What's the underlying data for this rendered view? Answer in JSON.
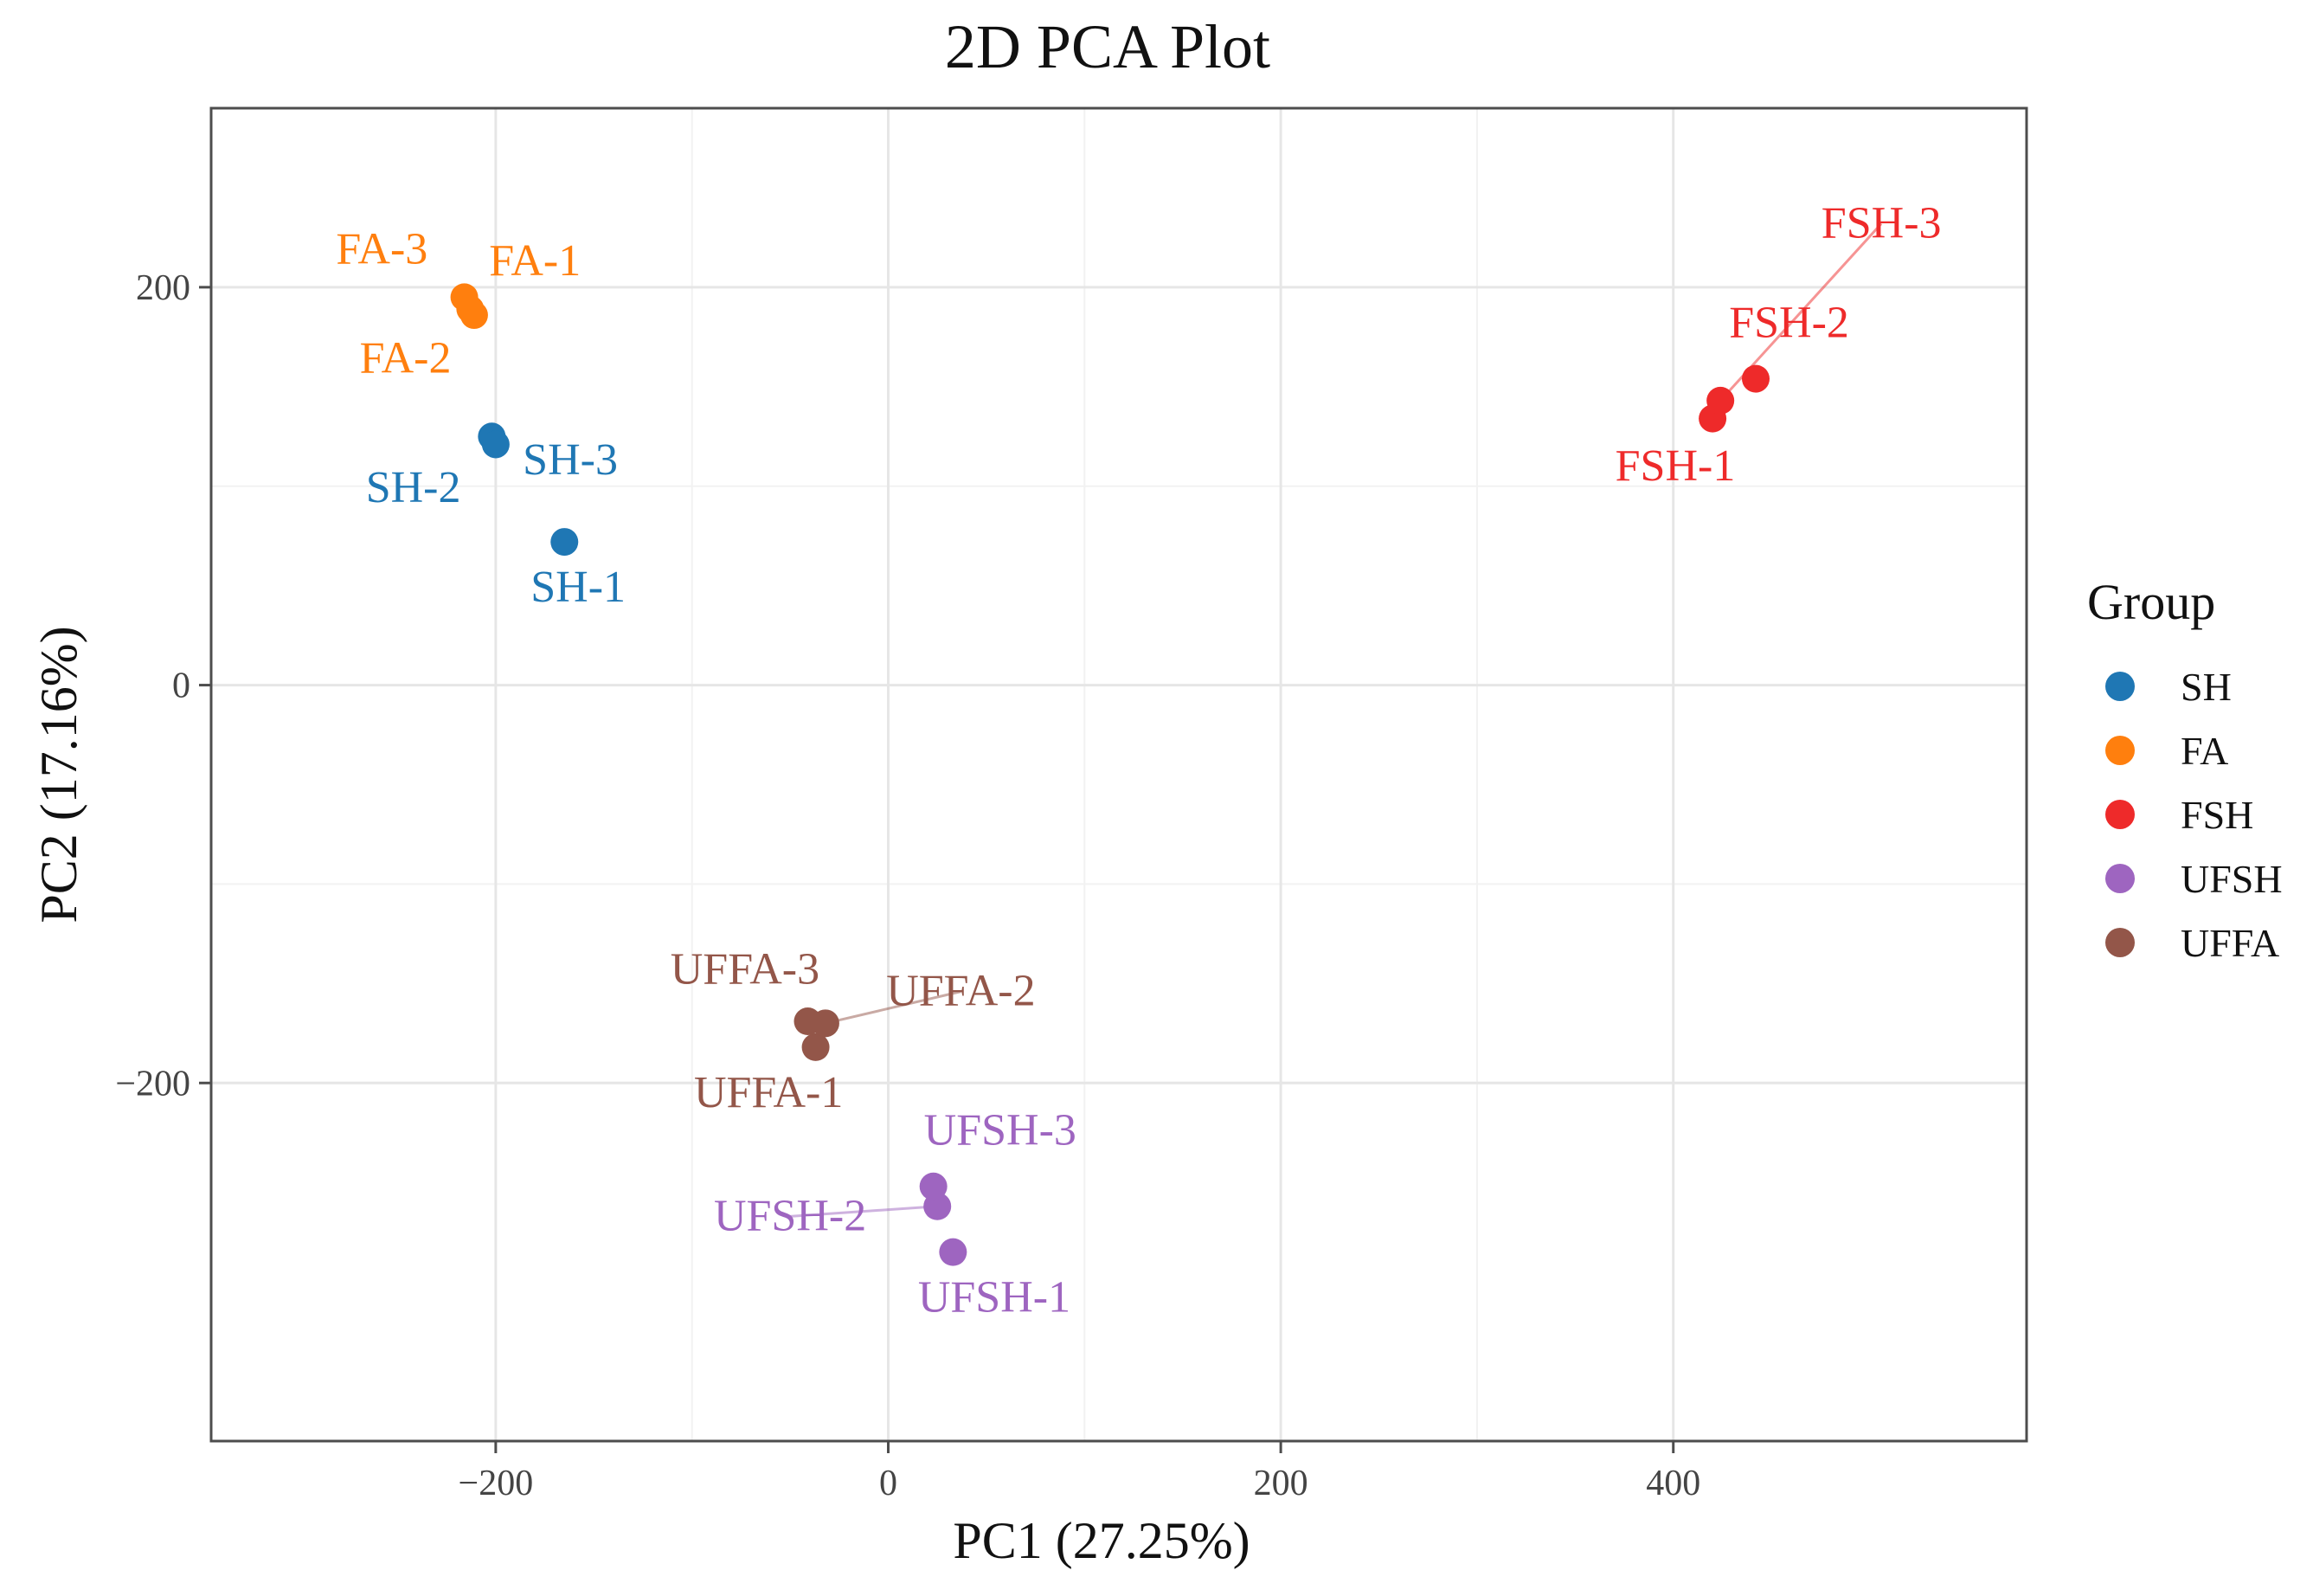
{
  "chart_data": {
    "type": "scatter",
    "title": "2D PCA Plot",
    "xlabel": "PC1 (27.25%)",
    "ylabel": "PC2 (17.16%)",
    "xlim": [
      -345,
      580
    ],
    "ylim": [
      -380,
      290
    ],
    "xticks": [
      {
        "value": -200,
        "label": "−200"
      },
      {
        "value": 0,
        "label": "0"
      },
      {
        "value": 200,
        "label": "200"
      },
      {
        "value": 400,
        "label": "400"
      }
    ],
    "yticks": [
      {
        "value": -200,
        "label": "−200"
      },
      {
        "value": 0,
        "label": "0"
      },
      {
        "value": 200,
        "label": "200"
      }
    ],
    "grid": true,
    "legend": {
      "title": "Group",
      "placement": "right"
    },
    "series": [
      {
        "name": "SH",
        "color": "#1f77b4",
        "points": [
          {
            "label": "SH-1",
            "x": -165,
            "y": 72,
            "lx": -158,
            "ly": 42,
            "leader": false
          },
          {
            "label": "SH-2",
            "x": -202,
            "y": 125,
            "lx": -242,
            "ly": 92,
            "leader": false
          },
          {
            "label": "SH-3",
            "x": -200,
            "y": 121,
            "lx": -162,
            "ly": 106,
            "leader": false
          }
        ]
      },
      {
        "name": "FA",
        "color": "#ff7f0e",
        "points": [
          {
            "label": "FA-1",
            "x": -211,
            "y": 186,
            "lx": -180,
            "ly": 206,
            "leader": false
          },
          {
            "label": "FA-2",
            "x": -213,
            "y": 189,
            "lx": -246,
            "ly": 157,
            "leader": false
          },
          {
            "label": "FA-3",
            "x": -216,
            "y": 195,
            "lx": -258,
            "ly": 212,
            "leader": false
          }
        ]
      },
      {
        "name": "FSH",
        "color": "#ee2a2a",
        "points": [
          {
            "label": "FSH-1",
            "x": 420,
            "y": 134,
            "lx": 401,
            "ly": 103,
            "leader": false
          },
          {
            "label": "FSH-2",
            "x": 442,
            "y": 154,
            "lx": 459,
            "ly": 175,
            "leader": false
          },
          {
            "label": "FSH-3",
            "x": 424,
            "y": 143,
            "lx": 506,
            "ly": 225,
            "leader": true
          }
        ]
      },
      {
        "name": "UFSH",
        "color": "#9e65c0",
        "points": [
          {
            "label": "UFSH-1",
            "x": 33,
            "y": -285,
            "lx": 54,
            "ly": -315,
            "leader": false
          },
          {
            "label": "UFSH-2",
            "x": 25,
            "y": -262,
            "lx": -50,
            "ly": -274,
            "leader": true
          },
          {
            "label": "UFSH-3",
            "x": 23,
            "y": -252,
            "lx": 57,
            "ly": -231,
            "leader": false
          }
        ]
      },
      {
        "name": "UFFA",
        "color": "#935649",
        "points": [
          {
            "label": "UFFA-1",
            "x": -37,
            "y": -182,
            "lx": -61,
            "ly": -212,
            "leader": false
          },
          {
            "label": "UFFA-2",
            "x": -32,
            "y": -170,
            "lx": 37,
            "ly": -161,
            "leader": true
          },
          {
            "label": "UFFA-3",
            "x": -41,
            "y": -169,
            "lx": -73,
            "ly": -150,
            "leader": false
          }
        ]
      }
    ]
  }
}
